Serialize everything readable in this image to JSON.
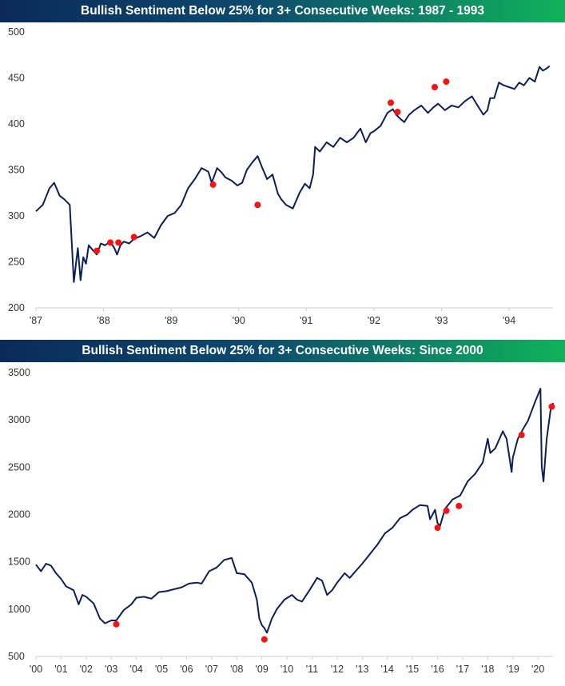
{
  "chart_data": [
    {
      "type": "line",
      "title": "Bullish Sentiment Below 25% for 3+ Consecutive Weeks: 1987 - 1993",
      "xlabel": "",
      "ylabel": "",
      "ylim": [
        200,
        500
      ],
      "yticks": [
        200,
        250,
        300,
        350,
        400,
        450,
        500
      ],
      "xlim": [
        1987.0,
        1994.65
      ],
      "xtick_labels": [
        "'87",
        "'88",
        "'89",
        "'90",
        "'91",
        "'92",
        "'93",
        "'94"
      ],
      "xtick_values": [
        1987,
        1988,
        1989,
        1990,
        1991,
        1992,
        1993,
        1994
      ],
      "grid": false,
      "series": [
        {
          "color": "#0b1f5c",
          "x": [
            1987.0,
            1987.1,
            1987.2,
            1987.27,
            1987.35,
            1987.42,
            1987.5,
            1987.56,
            1987.62,
            1987.66,
            1987.7,
            1987.74,
            1987.78,
            1987.85,
            1987.9,
            1987.96,
            1988.02,
            1988.1,
            1988.16,
            1988.2,
            1988.25,
            1988.3,
            1988.38,
            1988.45,
            1988.55,
            1988.65,
            1988.75,
            1988.85,
            1988.95,
            1989.05,
            1989.15,
            1989.25,
            1989.35,
            1989.45,
            1989.55,
            1989.6,
            1989.68,
            1989.75,
            1989.8,
            1989.9,
            1989.98,
            1990.05,
            1990.12,
            1990.2,
            1990.28,
            1990.35,
            1990.42,
            1990.5,
            1990.58,
            1990.63,
            1990.7,
            1990.8,
            1990.9,
            1990.98,
            1991.05,
            1991.1,
            1991.13,
            1991.2,
            1991.3,
            1991.4,
            1991.5,
            1991.6,
            1991.7,
            1991.75,
            1991.8,
            1991.88,
            1991.95,
            1992.0,
            1992.1,
            1992.2,
            1992.28,
            1992.33,
            1992.4,
            1992.45,
            1992.52,
            1992.6,
            1992.7,
            1992.8,
            1992.88,
            1992.95,
            1993.05,
            1993.15,
            1993.25,
            1993.35,
            1993.45,
            1993.55,
            1993.62,
            1993.68,
            1993.72,
            1993.78,
            1993.85,
            1993.92,
            1994.0,
            1994.08,
            1994.15,
            1994.22,
            1994.3,
            1994.38,
            1994.45,
            1994.5,
            1994.55,
            1994.6
          ],
          "y": [
            305,
            312,
            330,
            336,
            322,
            318,
            312,
            228,
            265,
            230,
            255,
            248,
            268,
            262,
            258,
            270,
            268,
            272,
            265,
            258,
            268,
            272,
            270,
            275,
            278,
            282,
            276,
            290,
            300,
            303,
            312,
            330,
            340,
            352,
            348,
            336,
            352,
            347,
            342,
            338,
            333,
            336,
            350,
            358,
            365,
            352,
            340,
            345,
            324,
            318,
            312,
            308,
            325,
            335,
            330,
            345,
            375,
            370,
            380,
            375,
            385,
            380,
            385,
            390,
            395,
            380,
            390,
            392,
            398,
            412,
            416,
            410,
            405,
            402,
            410,
            415,
            420,
            412,
            418,
            422,
            415,
            420,
            418,
            425,
            430,
            418,
            410,
            415,
            428,
            428,
            445,
            442,
            440,
            438,
            445,
            442,
            450,
            446,
            462,
            458,
            460,
            463
          ]
        }
      ],
      "markers": {
        "x": [
          1987.9,
          1988.1,
          1988.22,
          1988.45,
          1989.62,
          1990.28,
          1992.25,
          1992.35,
          1992.9,
          1993.07
        ],
        "y": [
          262,
          271,
          271,
          277,
          334,
          312,
          423,
          413,
          440,
          446
        ]
      }
    },
    {
      "type": "line",
      "title": "Bullish Sentiment Below 25% for 3+ Consecutive Weeks: Since 2000",
      "xlabel": "",
      "ylabel": "",
      "ylim": [
        500,
        3500
      ],
      "yticks": [
        500,
        1000,
        1500,
        2000,
        2500,
        3000,
        3500
      ],
      "xlim": [
        2000.0,
        2020.6
      ],
      "xtick_labels": [
        "'00",
        "'01",
        "'02",
        "'03",
        "'04",
        "'05",
        "'06",
        "'07",
        "'08",
        "'09",
        "'10",
        "'11",
        "'12",
        "'13",
        "'14",
        "'15",
        "'16",
        "'17",
        "'18",
        "'19",
        "'20"
      ],
      "xtick_values": [
        2000,
        2001,
        2002,
        2003,
        2004,
        2005,
        2006,
        2007,
        2008,
        2009,
        2010,
        2011,
        2012,
        2013,
        2014,
        2015,
        2016,
        2017,
        2018,
        2019,
        2020
      ],
      "grid": false,
      "series": [
        {
          "color": "#0b1f5c",
          "x": [
            2000.0,
            2000.2,
            2000.4,
            2000.6,
            2000.8,
            2001.0,
            2001.2,
            2001.5,
            2001.7,
            2001.85,
            2002.0,
            2002.3,
            2002.55,
            2002.75,
            2003.0,
            2003.2,
            2003.5,
            2003.8,
            2004.0,
            2004.3,
            2004.6,
            2004.9,
            2005.2,
            2005.5,
            2005.8,
            2006.1,
            2006.4,
            2006.6,
            2006.9,
            2007.2,
            2007.5,
            2007.8,
            2008.0,
            2008.3,
            2008.6,
            2008.8,
            2008.9,
            2009.0,
            2009.1,
            2009.2,
            2009.4,
            2009.6,
            2009.9,
            2010.2,
            2010.4,
            2010.6,
            2010.9,
            2011.2,
            2011.4,
            2011.6,
            2011.8,
            2012.0,
            2012.3,
            2012.5,
            2012.8,
            2013.0,
            2013.3,
            2013.6,
            2013.9,
            2014.2,
            2014.5,
            2014.8,
            2015.0,
            2015.3,
            2015.6,
            2015.7,
            2015.9,
            2016.0,
            2016.1,
            2016.3,
            2016.6,
            2016.9,
            2017.2,
            2017.5,
            2017.8,
            2018.0,
            2018.1,
            2018.3,
            2018.6,
            2018.75,
            2018.95,
            2019.0,
            2019.2,
            2019.4,
            2019.6,
            2019.9,
            2020.1,
            2020.15,
            2020.22,
            2020.35,
            2020.5,
            2020.6
          ],
          "y": [
            1470,
            1400,
            1480,
            1460,
            1380,
            1320,
            1240,
            1200,
            1050,
            1150,
            1130,
            1060,
            900,
            850,
            880,
            880,
            990,
            1050,
            1120,
            1130,
            1110,
            1180,
            1190,
            1210,
            1230,
            1270,
            1280,
            1270,
            1400,
            1440,
            1520,
            1540,
            1380,
            1370,
            1280,
            1100,
            900,
            830,
            800,
            750,
            900,
            1000,
            1100,
            1150,
            1100,
            1080,
            1200,
            1330,
            1300,
            1150,
            1200,
            1280,
            1380,
            1330,
            1420,
            1480,
            1580,
            1680,
            1800,
            1860,
            1960,
            2000,
            2050,
            2100,
            2090,
            1950,
            2050,
            1910,
            1880,
            2060,
            2160,
            2200,
            2350,
            2430,
            2550,
            2800,
            2650,
            2700,
            2880,
            2800,
            2450,
            2600,
            2800,
            2900,
            2990,
            3200,
            3330,
            2500,
            2350,
            2800,
            3100,
            3180
          ]
        }
      ],
      "markers": {
        "x": [
          2003.2,
          2009.1,
          2016.0,
          2016.35,
          2016.85,
          2019.35,
          2020.55
        ],
        "y": [
          840,
          680,
          1860,
          2040,
          2090,
          2840,
          3140
        ]
      }
    }
  ]
}
